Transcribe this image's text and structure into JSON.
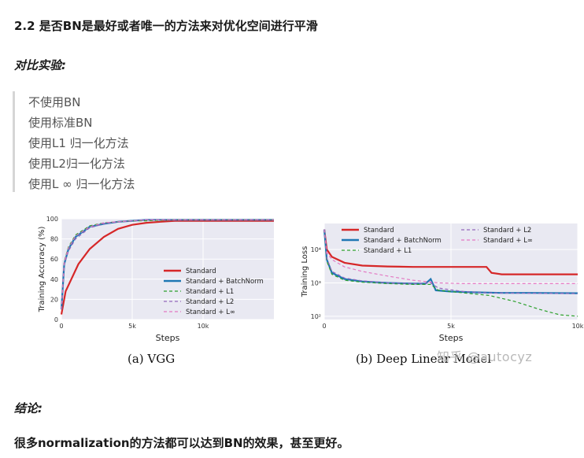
{
  "heading": "2.2 是否BN是最好或者唯一的方法来对优化空间进行平滑",
  "experiment_title": "对比实验:",
  "experiment_items": [
    "不使用BN",
    "使用标准BN",
    "使用L1 归一化方法",
    "使用L2归一化方法",
    "使用L ∞ 归一化方法"
  ],
  "conclusion_title": "结论:",
  "conclusion_text": "很多normalization的方法都可以达到BN的效果，甚至更好。",
  "watermark": "知乎 @autocyz",
  "colors": {
    "standard": "#d62728",
    "batchnorm": "#1f77b4",
    "l1": "#2ca02c",
    "l2": "#9467bd",
    "linf": "#e377c2"
  },
  "chart_data": [
    {
      "type": "line",
      "caption": "(a) VGG",
      "xlabel": "Steps",
      "ylabel": "Training Accuracy (%)",
      "xlim": [
        0,
        15000
      ],
      "ylim": [
        0,
        100
      ],
      "xticks": [
        "0",
        "5k",
        "10k"
      ],
      "xtick_values": [
        0,
        5000,
        10000
      ],
      "yticks": [
        "0",
        "20",
        "40",
        "60",
        "80",
        "100"
      ],
      "ytick_values": [
        0,
        20,
        40,
        60,
        80,
        100
      ],
      "legend": [
        "Standard",
        "Standard + BatchNorm",
        "Standard + L1",
        "Standard + L2",
        "Standard + L∞"
      ],
      "series": [
        {
          "name": "Standard",
          "x": [
            0,
            300,
            700,
            1200,
            2000,
            3000,
            4000,
            5000,
            6000,
            7000,
            8000,
            10000,
            12000,
            15000
          ],
          "values": [
            5,
            28,
            40,
            55,
            70,
            82,
            90,
            94,
            96,
            97,
            98,
            98,
            98,
            98
          ]
        },
        {
          "name": "Standard + BatchNorm",
          "x": [
            0,
            200,
            500,
            1000,
            2000,
            3000,
            4000,
            5000,
            6000,
            8000,
            10000,
            12000,
            15000
          ],
          "values": [
            10,
            55,
            70,
            82,
            92,
            95,
            97,
            98,
            99,
            99,
            99,
            99,
            99
          ]
        },
        {
          "name": "Standard + L1",
          "x": [
            0,
            200,
            500,
            1000,
            2000,
            3000,
            4000,
            5000,
            6000,
            8000,
            10000,
            12000,
            15000
          ],
          "values": [
            10,
            58,
            72,
            84,
            93,
            96,
            97,
            98,
            98,
            99,
            99,
            99,
            99
          ]
        },
        {
          "name": "Standard + L2",
          "x": [
            0,
            200,
            500,
            1000,
            2000,
            3000,
            4000,
            5000,
            6000,
            8000,
            10000,
            12000,
            15000
          ],
          "values": [
            10,
            55,
            68,
            80,
            91,
            95,
            97,
            98,
            99,
            99,
            99,
            99,
            99
          ]
        },
        {
          "name": "Standard + L∞",
          "x": [
            0,
            200,
            500,
            1000,
            2000,
            3000,
            4000,
            5000,
            6000,
            8000,
            10000,
            12000,
            15000
          ],
          "values": [
            10,
            57,
            71,
            83,
            92,
            96,
            97,
            98,
            99,
            99,
            99,
            99,
            99
          ]
        }
      ]
    },
    {
      "type": "line",
      "caption": "(b) Deep Linear Model",
      "xlabel": "Steps",
      "ylabel": "Training Loss",
      "yscale": "log",
      "xlim": [
        0,
        10000
      ],
      "ylim": [
        80,
        60000
      ],
      "xticks": [
        "0",
        "5k",
        "10k"
      ],
      "xtick_values": [
        0,
        5000,
        10000
      ],
      "yticks": [
        "10²",
        "10³",
        "10⁴"
      ],
      "ytick_values": [
        100,
        1000,
        10000
      ],
      "legend": [
        "Standard",
        "Standard + BatchNorm",
        "Standard + L1",
        "Standard + L2",
        "Standard + L∞"
      ],
      "series": [
        {
          "name": "Standard",
          "x": [
            0,
            100,
            300,
            800,
            1500,
            2500,
            3500,
            4500,
            5500,
            6000,
            6400,
            6600,
            7000,
            8000,
            10000
          ],
          "values": [
            40000,
            10000,
            6000,
            4000,
            3300,
            3100,
            3000,
            3000,
            3000,
            3000,
            3000,
            2000,
            1800,
            1800,
            1800
          ]
        },
        {
          "name": "Standard + BatchNorm",
          "x": [
            0,
            100,
            300,
            800,
            1500,
            2500,
            3500,
            4000,
            4200,
            4400,
            5000,
            6000,
            7000,
            8000,
            10000
          ],
          "values": [
            40000,
            5000,
            2000,
            1300,
            1100,
            1000,
            950,
            950,
            1300,
            600,
            550,
            520,
            500,
            500,
            490
          ]
        },
        {
          "name": "Standard + L1",
          "x": [
            0,
            100,
            300,
            800,
            1500,
            2500,
            3500,
            4200,
            4500,
            5500,
            6500,
            7500,
            8500,
            9300,
            10000
          ],
          "values": [
            40000,
            4500,
            1800,
            1200,
            1050,
            950,
            900,
            900,
            600,
            500,
            420,
            280,
            160,
            110,
            100
          ]
        },
        {
          "name": "Standard + L2",
          "x": [
            0,
            100,
            300,
            800,
            1500,
            2500,
            3500,
            4200,
            4500,
            5500,
            6500,
            8000,
            10000
          ],
          "values": [
            40000,
            5500,
            2200,
            1400,
            1150,
            1000,
            950,
            1000,
            700,
            550,
            500,
            490,
            480
          ]
        },
        {
          "name": "Standard + L∞",
          "x": [
            0,
            100,
            300,
            800,
            1500,
            2500,
            3500,
            4500,
            5500,
            7000,
            8500,
            10000
          ],
          "values": [
            40000,
            8000,
            5000,
            3000,
            2200,
            1600,
            1200,
            1000,
            950,
            950,
            950,
            950
          ]
        }
      ]
    }
  ]
}
